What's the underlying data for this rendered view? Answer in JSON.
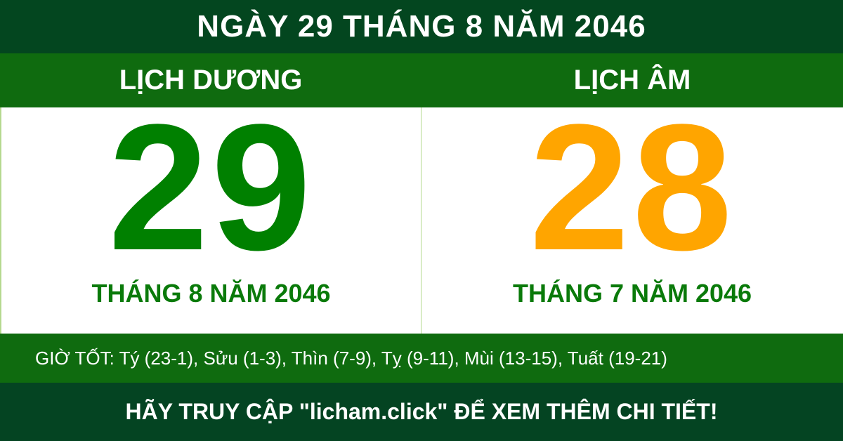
{
  "header": {
    "title": "NGÀY 29 THÁNG 8 NĂM 2046"
  },
  "columns": {
    "solar": {
      "label": "LỊCH DƯƠNG",
      "day": "29",
      "month_year": "THÁNG 8 NĂM 2046"
    },
    "lunar": {
      "label": "LỊCH ÂM",
      "day": "28",
      "month_year": "THÁNG 7 NĂM 2046"
    }
  },
  "good_hours": "GIỜ TỐT: Tý (23-1), Sửu (1-3), Thìn (7-9), Tỵ (9-11), Mùi (13-15), Tuất (19-21)",
  "footer": "HÃY TRUY CẬP \"licham.click\" ĐỂ XEM THÊM CHI TIẾT!",
  "colors": {
    "top": "#03461f",
    "band": "#0f6b0f",
    "solar_day": "#008000",
    "lunar_day": "#ffa500"
  }
}
